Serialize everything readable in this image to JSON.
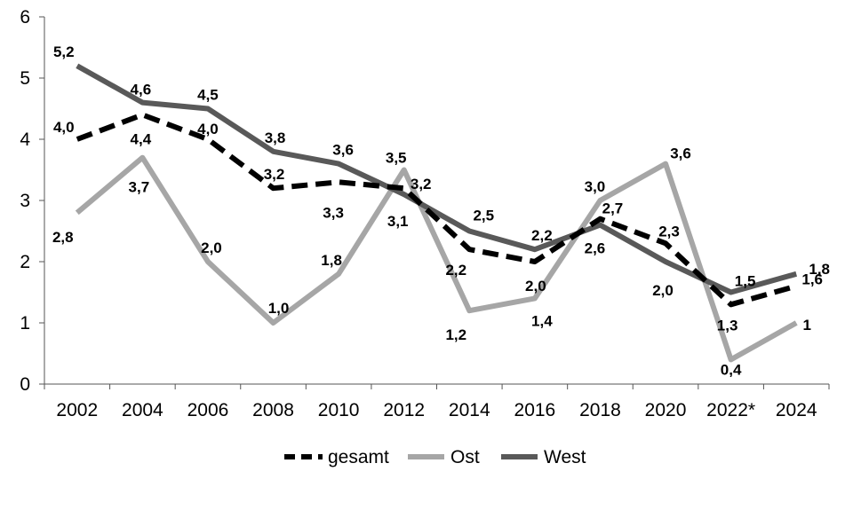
{
  "chart_data": {
    "type": "line",
    "title": "",
    "xlabel": "",
    "ylabel": "",
    "categories": [
      "2002",
      "2004",
      "2006",
      "2008",
      "2010",
      "2012",
      "2014",
      "2016",
      "2018",
      "2020",
      "2022*",
      "2024"
    ],
    "ylim": [
      0,
      6
    ],
    "yticks": [
      "0",
      "1",
      "2",
      "3",
      "4",
      "5",
      "6"
    ],
    "grid": false,
    "legend_position": "bottom",
    "series": [
      {
        "name": "gesamt",
        "color": "#000000",
        "style": "dashed",
        "values": [
          4.0,
          4.4,
          4.0,
          3.2,
          3.3,
          3.2,
          2.2,
          2.0,
          2.7,
          2.3,
          1.3,
          1.6
        ],
        "labels": [
          "4,0",
          "4,4",
          "4,0",
          "3,2",
          "3,3",
          "3,2",
          "2,2",
          "2,0",
          "2,7",
          "2,3",
          "1,3",
          "1,6"
        ]
      },
      {
        "name": "Ost",
        "color": "#a6a6a6",
        "style": "solid",
        "values": [
          2.8,
          3.7,
          2.0,
          1.0,
          1.8,
          3.5,
          1.2,
          1.4,
          3.0,
          3.6,
          0.4,
          1.0
        ],
        "labels": [
          "2,8",
          "3,7",
          "2,0",
          "1,0",
          "1,8",
          "3,5",
          "1,2",
          "1,4",
          "3,0",
          "3,6",
          "0,4",
          "1"
        ]
      },
      {
        "name": "West",
        "color": "#595959",
        "style": "solid",
        "values": [
          5.2,
          4.6,
          4.5,
          3.8,
          3.6,
          3.1,
          2.5,
          2.2,
          2.6,
          2.0,
          1.5,
          1.8
        ],
        "labels": [
          "5,2",
          "4,6",
          "4,5",
          "3,8",
          "3,6",
          "3,1",
          "2,5",
          "2,2",
          "2,6",
          "2,0",
          "1,5",
          "1,8"
        ]
      }
    ]
  }
}
